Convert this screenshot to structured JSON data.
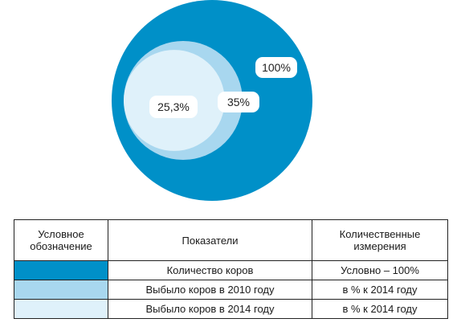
{
  "chart_data": {
    "type": "nested-circles",
    "circles": [
      {
        "label": "100%",
        "value": 100,
        "color": "#0090c8"
      },
      {
        "label": "35%",
        "value": 35,
        "color": "#a8d7ef"
      },
      {
        "label": "25,3%",
        "value": 25.3,
        "color": "#dff1fa"
      }
    ]
  },
  "legend_table": {
    "headers": {
      "symbol": "Условное обозначение",
      "indicator": "Показатели",
      "unit": "Количественные измерения"
    },
    "rows": [
      {
        "color": "#0090c8",
        "indicator": "Количество коров",
        "unit": "Условно – 100%"
      },
      {
        "color": "#a8d7ef",
        "indicator": "Выбыло коров в 2010 году",
        "unit": "в % к 2014 году"
      },
      {
        "color": "#dff1fa",
        "indicator": "Выбыло коров в 2014 году",
        "unit": "в % к 2014 году"
      }
    ]
  }
}
